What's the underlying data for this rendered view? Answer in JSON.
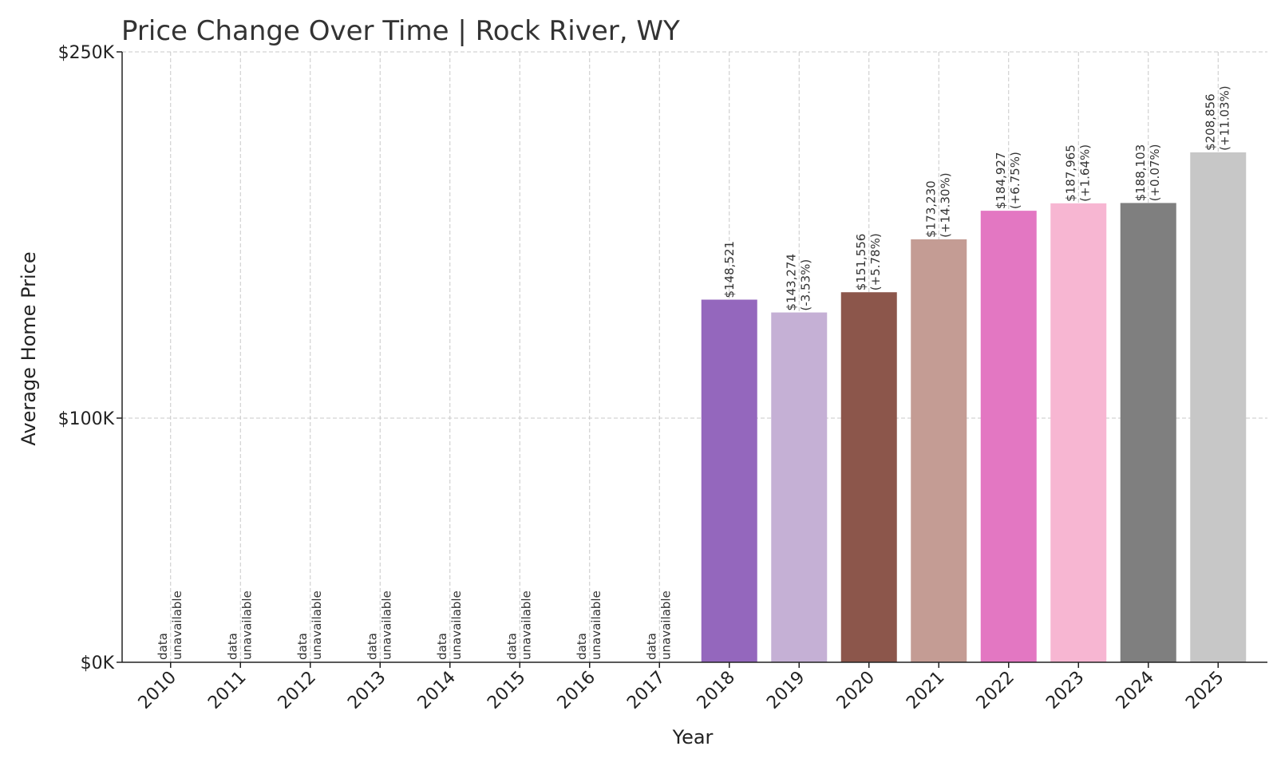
{
  "chart_data": {
    "type": "bar",
    "title": "Price Change Over Time | Rock River, WY",
    "xlabel": "Year",
    "ylabel": "Average Home Price",
    "ylim": [
      0,
      250000
    ],
    "y_ticks": [
      {
        "value": 0,
        "label": "$0K"
      },
      {
        "value": 100000,
        "label": "$100K"
      },
      {
        "value": 250000,
        "label": "$250K"
      }
    ],
    "grid": true,
    "categories": [
      "2010",
      "2011",
      "2012",
      "2013",
      "2014",
      "2015",
      "2016",
      "2017",
      "2018",
      "2019",
      "2020",
      "2021",
      "2022",
      "2023",
      "2024",
      "2025"
    ],
    "values": [
      null,
      null,
      null,
      null,
      null,
      null,
      null,
      null,
      148521,
      143274,
      151556,
      173230,
      184927,
      187965,
      188103,
      208856
    ],
    "value_labels": [
      "",
      "",
      "",
      "",
      "",
      "",
      "",
      "",
      "$148,521",
      "$143,274",
      "$151,556",
      "$173,230",
      "$184,927",
      "$187,965",
      "$188,103",
      "$208,856"
    ],
    "change_labels": [
      "",
      "",
      "",
      "",
      "",
      "",
      "",
      "",
      "",
      "(-3.53%)",
      "(+5.78%)",
      "(+14.30%)",
      "(+6.75%)",
      "(+1.64%)",
      "(+0.07%)",
      "(+11.03%)"
    ],
    "unavailable_label": [
      "data",
      "unavailable"
    ],
    "colors": [
      "#1f77b4",
      "#aec7e8",
      "#ff7f0e",
      "#ffbb78",
      "#2ca02c",
      "#98df8a",
      "#d62728",
      "#ff9896",
      "#9467bd",
      "#c5b0d5",
      "#8c564b",
      "#c49c94",
      "#e377c2",
      "#f7b6d2",
      "#7f7f7f",
      "#c7c7c7"
    ]
  }
}
